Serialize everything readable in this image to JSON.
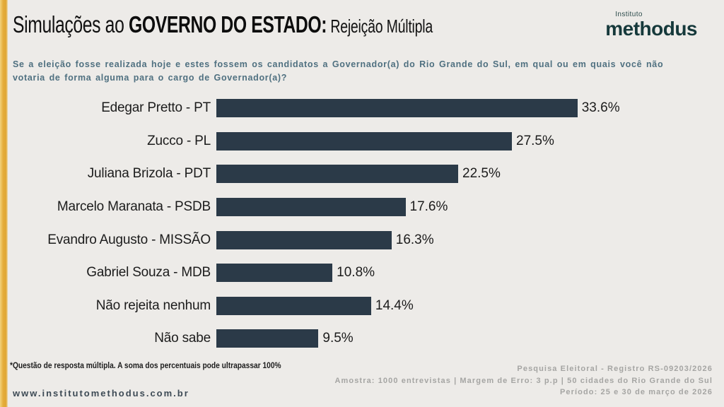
{
  "header": {
    "title_prefix": "Simulações ao ",
    "title_main": "GOVERNO DO ESTADO:",
    "title_suffix": " Rejeição Múltipla",
    "logo_top": "Instituto",
    "logo_name": "methodus"
  },
  "question": {
    "line1": "Se a eleição fosse realizada hoje e estes fossem os candidatos a Governador(a) do Rio Grande do Sul, em qual ou em quais você não",
    "line2": "votaria de forma alguma para o cargo de Governador(a)?"
  },
  "chart_data": {
    "type": "bar",
    "orientation": "horizontal",
    "title": "Simulações ao GOVERNO DO ESTADO: Rejeição Múltipla",
    "categories": [
      "Edegar Pretto - PT",
      "Zucco - PL",
      "Juliana Brizola - PDT",
      "Marcelo Maranata - PSDB",
      "Evandro Augusto - MISSÃO",
      "Gabriel Souza - MDB",
      "Não rejeita nenhum",
      "Não sabe"
    ],
    "values": [
      33.6,
      27.5,
      22.5,
      17.6,
      16.3,
      10.8,
      14.4,
      9.5
    ],
    "value_suffix": "%",
    "xlim": [
      0,
      40
    ],
    "grid": false,
    "legend": false,
    "bar_color": "#2b3a48"
  },
  "footnote": "*Questão de resposta múltipla. A soma dos percentuais pode ultrapassar 100%",
  "footer": {
    "website": "www.institutomethodus.com.br",
    "registry": "Pesquisa Eleitoral - Registro RS-09203/2026",
    "sample": "Amostra: 1000 entrevistas | Margem de Erro: 3 p.p | 50 cidades do Rio Grande do Sul",
    "period": "Período: 25 e 30 de março de 2026"
  },
  "colors": {
    "accent_stripe": "#e5ad3a",
    "bar": "#2b3a48",
    "question_text": "#4f7080",
    "logo_text": "#16393b",
    "background": "#edebe8",
    "footer_right_text": "#a5a5a3"
  }
}
